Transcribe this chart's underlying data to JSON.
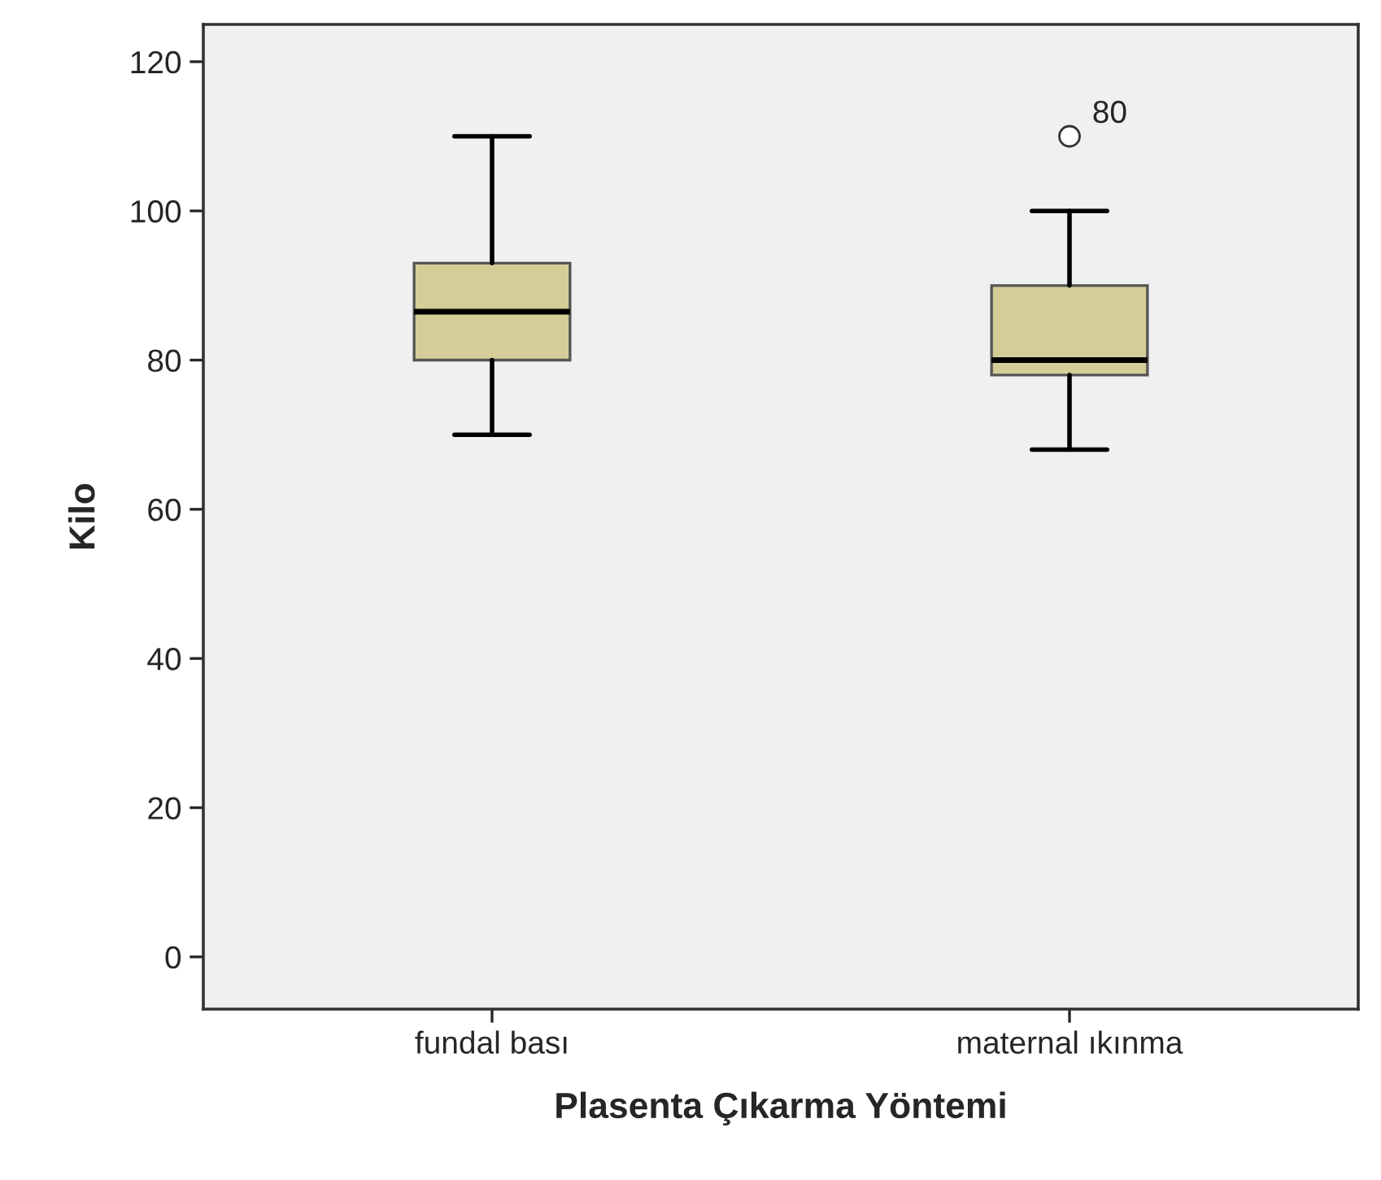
{
  "chart_data": {
    "type": "box",
    "xlabel": "Plasenta Çıkarma Yöntemi",
    "ylabel": "Kilo",
    "categories": [
      "fundal bası",
      "maternal ıkınma"
    ],
    "boxes": [
      {
        "low": 70,
        "q1": 80,
        "median": 86.5,
        "q3": 93,
        "high": 110
      },
      {
        "low": 68,
        "q1": 78,
        "median": 80,
        "q3": 90,
        "high": 100,
        "outliers": [
          110
        ]
      }
    ],
    "color": "#d4cd98",
    "ylim": [
      -7,
      125
    ],
    "yticks": [
      0,
      20,
      40,
      60,
      80,
      100,
      120
    ],
    "annotations": [
      "80"
    ],
    "grid": false,
    "legend": false
  }
}
